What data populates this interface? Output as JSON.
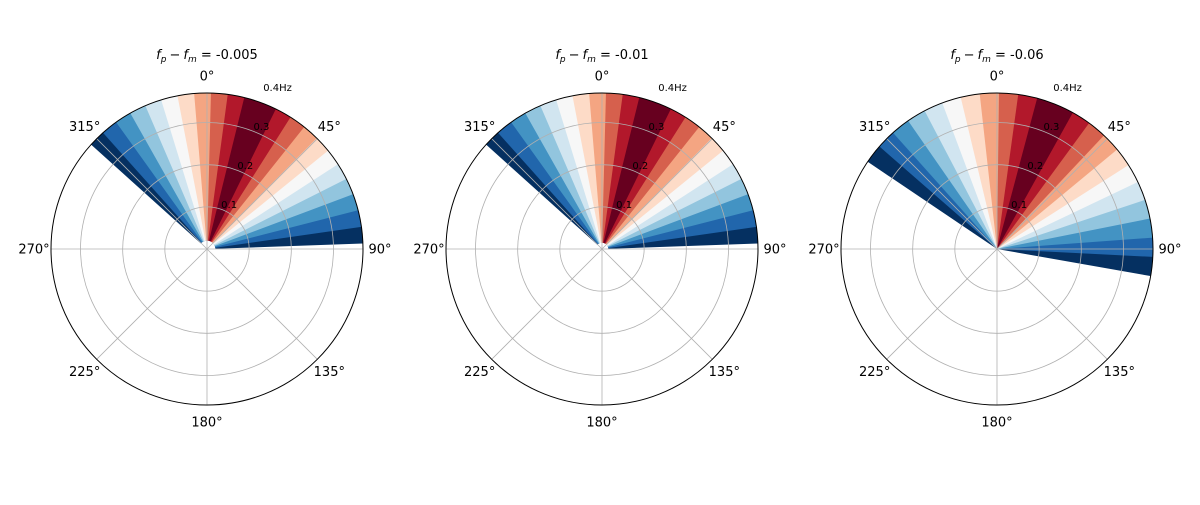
{
  "figure": {
    "background": "#ffffff"
  },
  "chart_data": [
    {
      "type": "polar-contourf",
      "title": {
        "lhs_var": "f",
        "lhs_sub1": "p",
        "lhs_minus": "−",
        "lhs_sub2": "m",
        "rhs": "-0.005"
      },
      "theta_direction": "clockwise",
      "theta_zero": "N",
      "theta_ticks": [
        0,
        45,
        90,
        135,
        180,
        225,
        270,
        315
      ],
      "theta_tick_labels": [
        "0°",
        "45°",
        "90°",
        "135°",
        "180°",
        "225°",
        "270°",
        "315°"
      ],
      "r_ticks": [
        0.1,
        0.2,
        0.3,
        0.4
      ],
      "r_tick_labels": [
        "0.1",
        "0.2",
        "0.3",
        "0.4Hz"
      ],
      "r_lim": [
        0,
        0.37
      ],
      "grid": true,
      "colormap": "RdBu_r",
      "lobe_center_deg": 20,
      "lobe_halfwidth_deg": 68,
      "lobe_inner_r": 0.02
    },
    {
      "type": "polar-contourf",
      "title": {
        "lhs_var": "f",
        "lhs_sub1": "p",
        "lhs_minus": "−",
        "lhs_sub2": "m",
        "rhs": "-0.01"
      },
      "theta_direction": "clockwise",
      "theta_zero": "N",
      "theta_ticks": [
        0,
        45,
        90,
        135,
        180,
        225,
        270,
        315
      ],
      "theta_tick_labels": [
        "0°",
        "45°",
        "90°",
        "135°",
        "180°",
        "225°",
        "270°",
        "315°"
      ],
      "r_ticks": [
        0.1,
        0.2,
        0.3,
        0.4
      ],
      "r_tick_labels": [
        "0.1",
        "0.2",
        "0.3",
        "0.4Hz"
      ],
      "r_lim": [
        0,
        0.37
      ],
      "grid": true,
      "colormap": "RdBu_r",
      "lobe_center_deg": 20,
      "lobe_halfwidth_deg": 68,
      "lobe_inner_r": 0.015
    },
    {
      "type": "polar-contourf",
      "title": {
        "lhs_var": "f",
        "lhs_sub1": "p",
        "lhs_minus": "−",
        "lhs_sub2": "m",
        "rhs": "-0.06"
      },
      "theta_direction": "clockwise",
      "theta_zero": "N",
      "theta_ticks": [
        0,
        45,
        90,
        135,
        180,
        225,
        270,
        315
      ],
      "theta_tick_labels": [
        "0°",
        "45°",
        "90°",
        "135°",
        "180°",
        "225°",
        "270°",
        "315°"
      ],
      "r_ticks": [
        0.1,
        0.2,
        0.3,
        0.4
      ],
      "r_tick_labels": [
        "0.1",
        "0.2",
        "0.3",
        "0.4Hz"
      ],
      "r_lim": [
        0,
        0.37
      ],
      "grid": true,
      "colormap": "RdBu_r",
      "lobe_center_deg": 22,
      "lobe_halfwidth_deg": 78,
      "lobe_inner_r": 0.0
    }
  ]
}
